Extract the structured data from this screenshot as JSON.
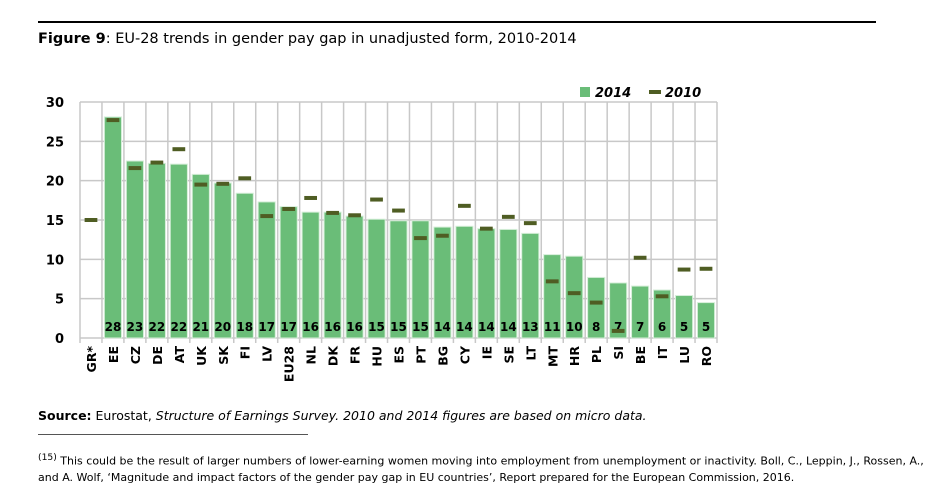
{
  "figure": {
    "label": "Figure 9",
    "title": ": EU-28 trends in gender pay gap in unadjusted form, 2010-2014"
  },
  "chart_data": {
    "type": "bar",
    "categories": [
      "GR*",
      "EE",
      "CZ",
      "DE",
      "AT",
      "UK",
      "SK",
      "FI",
      "LV",
      "EU28",
      "NL",
      "DK",
      "FR",
      "HU",
      "ES",
      "PT",
      "BG",
      "CY",
      "IE",
      "SE",
      "LT",
      "MT",
      "HR",
      "PL",
      "SI",
      "BE",
      "IT",
      "LU",
      "RO"
    ],
    "series": [
      {
        "name": "2014",
        "style": "bar",
        "color": "#6abd78",
        "values": [
          null,
          28.1,
          22.5,
          22.2,
          22.1,
          20.8,
          19.7,
          18.4,
          17.3,
          16.7,
          16.0,
          16.0,
          15.5,
          15.1,
          14.9,
          14.9,
          14.1,
          14.2,
          13.9,
          13.8,
          13.3,
          10.6,
          10.4,
          7.7,
          7.0,
          6.6,
          6.1,
          5.4,
          4.5
        ],
        "data_labels": [
          "",
          "28",
          "23",
          "22",
          "22",
          "21",
          "20",
          "18",
          "17",
          "17",
          "16",
          "16",
          "16",
          "15",
          "15",
          "15",
          "14",
          "14",
          "14",
          "14",
          "13",
          "11",
          "10",
          "8",
          "7",
          "7",
          "6",
          "5",
          "5"
        ]
      },
      {
        "name": "2010",
        "style": "dash-marker",
        "color": "#4f5d23",
        "values": [
          15.0,
          27.7,
          21.6,
          22.3,
          24.0,
          19.5,
          19.6,
          20.3,
          15.5,
          16.4,
          17.8,
          15.9,
          15.6,
          17.6,
          16.2,
          12.7,
          13.0,
          16.8,
          13.9,
          15.4,
          14.6,
          7.2,
          5.7,
          4.5,
          0.9,
          10.2,
          5.3,
          8.7,
          8.8
        ]
      }
    ],
    "yticks": [
      0,
      5,
      10,
      15,
      20,
      25,
      30
    ],
    "ylim": [
      0,
      30
    ],
    "grid": true,
    "legend": "top-right"
  },
  "source": {
    "label": "Source:",
    "text": " Eurostat, ",
    "italic": "Structure of Earnings Survey. 2010 and 2014 figures are based on micro data."
  },
  "footnote": {
    "marker": "(15)",
    "text": " This could be the result of larger numbers of lower-earning women moving into employment from unemployment or inactivity. Boll, C., Leppin, J., Rossen, A., and A. Wolf, ‘Magnitude and impact factors of the gender pay gap in EU countries’, Report prepared for the European Commission, 2016."
  }
}
